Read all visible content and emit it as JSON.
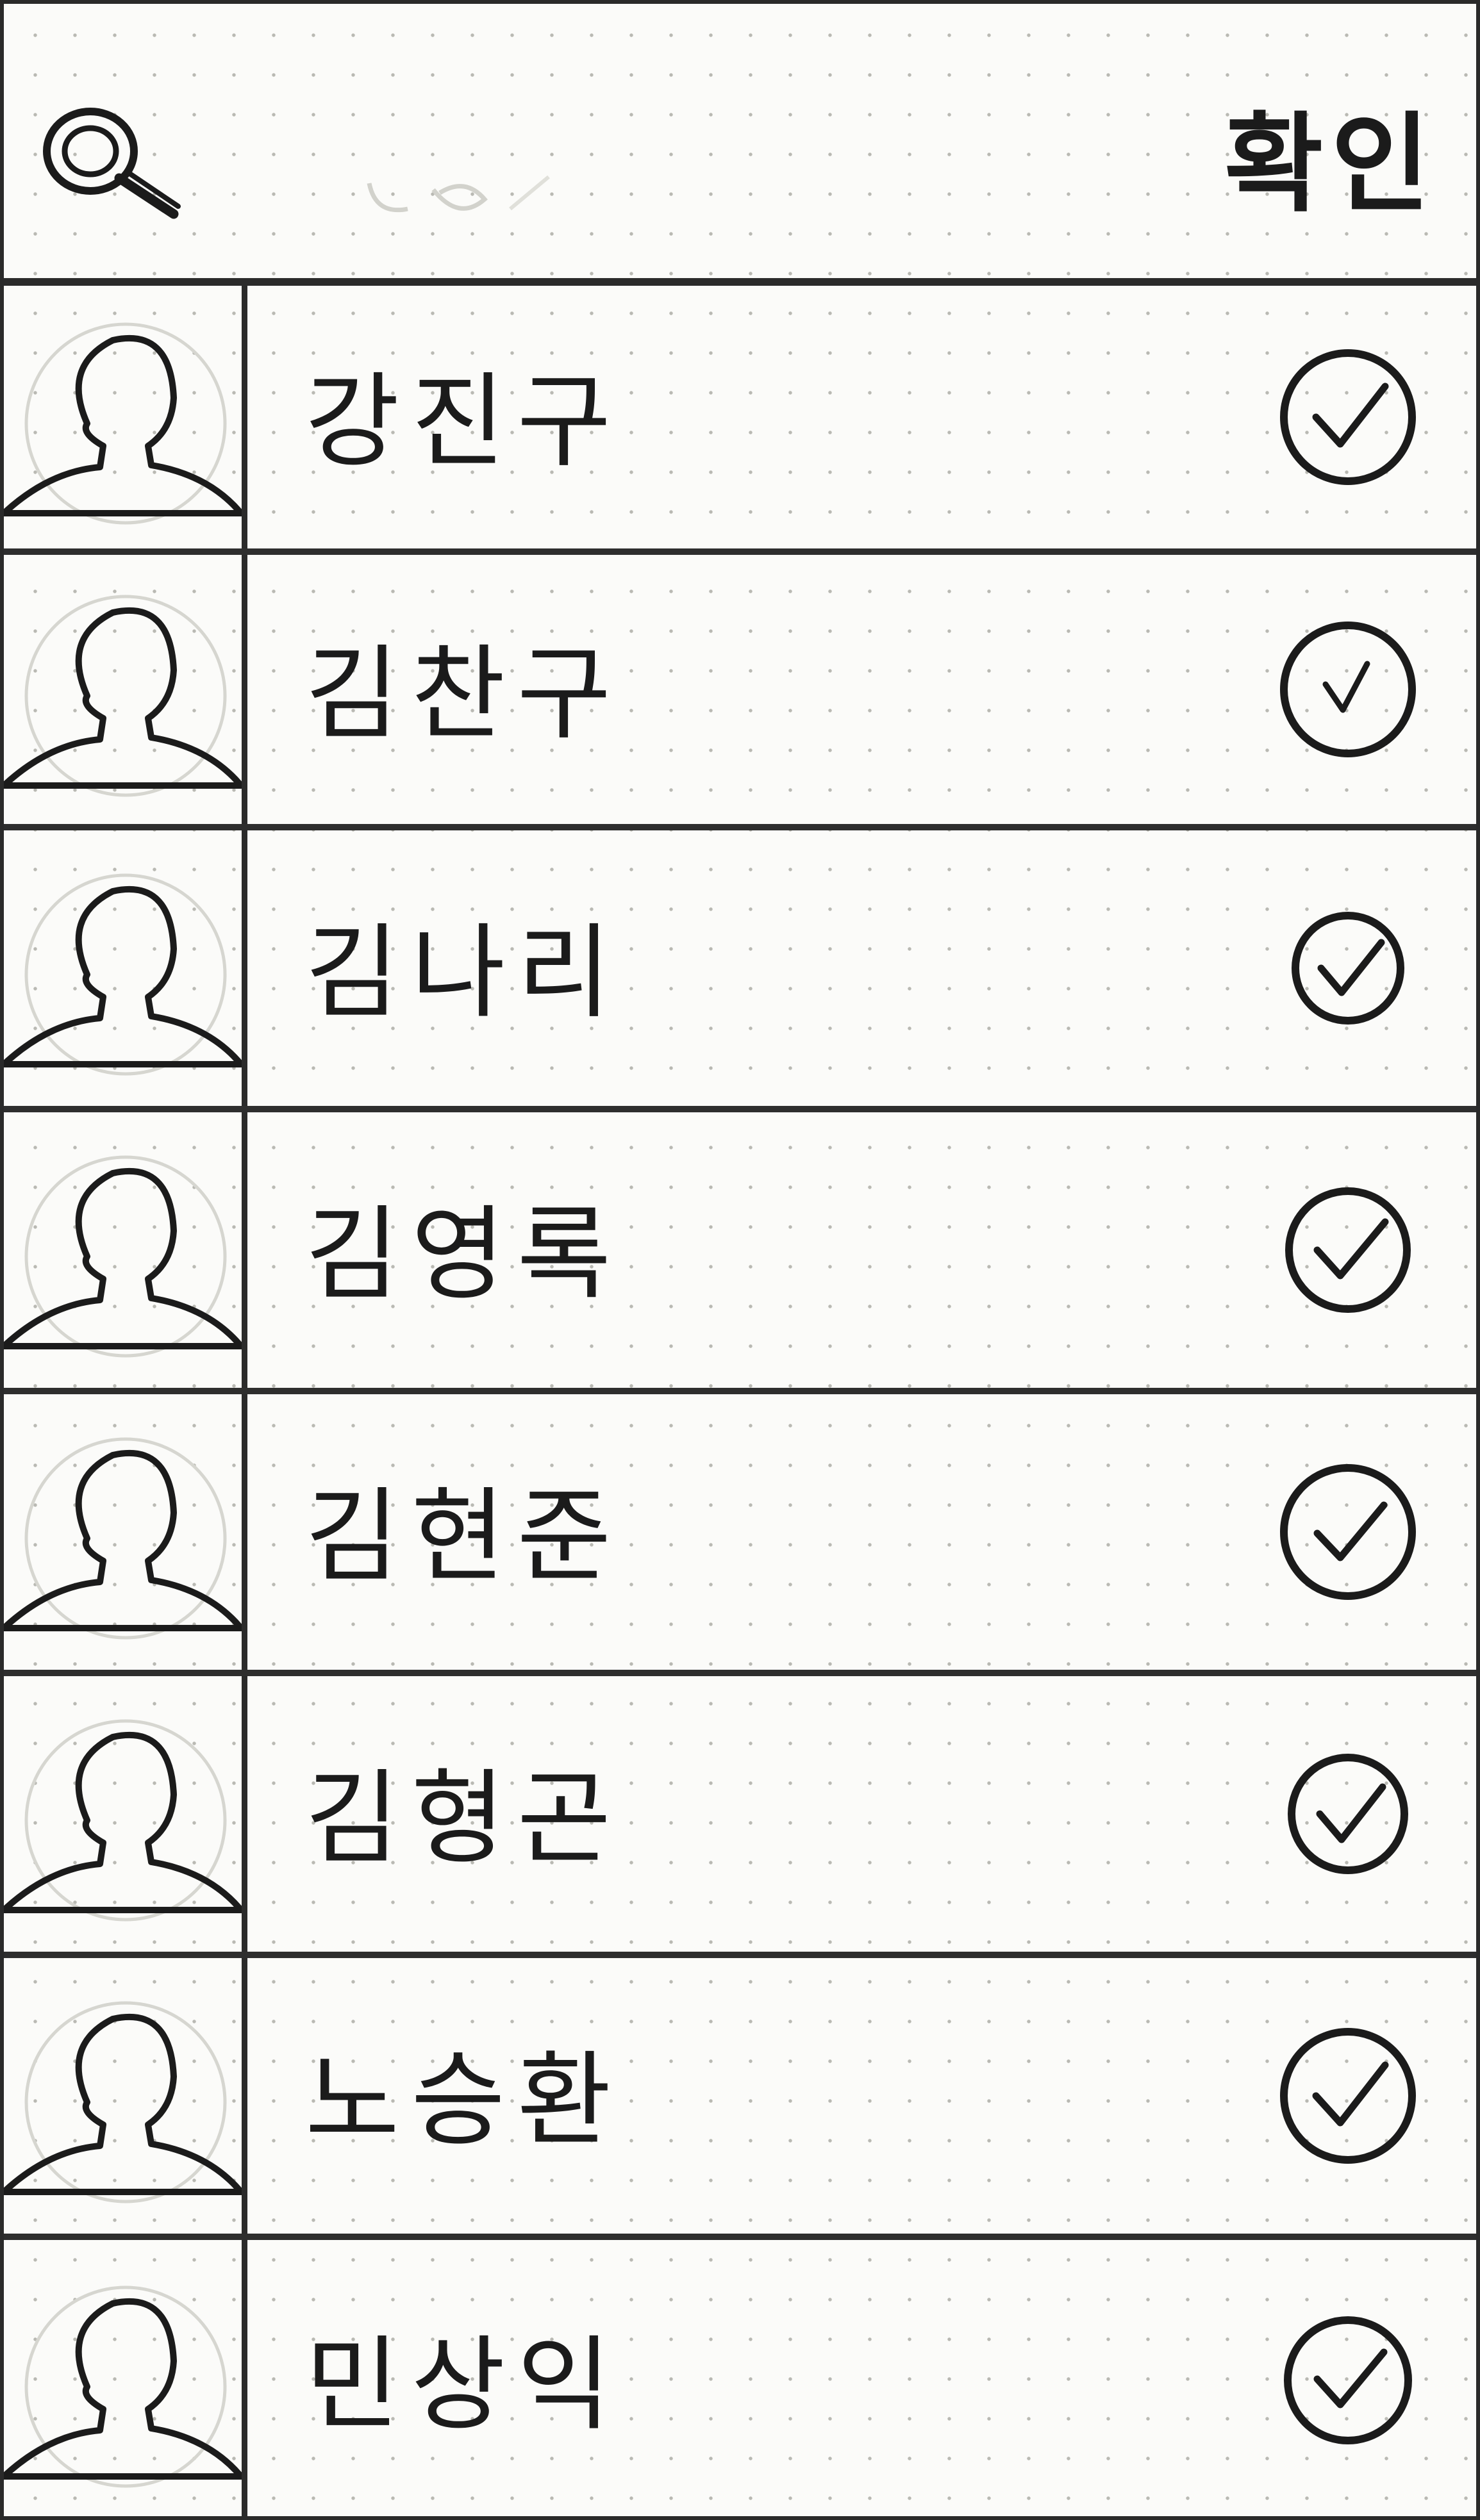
{
  "header": {
    "search_icon": "search-icon",
    "confirm_label": "확인"
  },
  "contacts": [
    {
      "name": "강진구",
      "selected": true
    },
    {
      "name": "김찬구",
      "selected": true
    },
    {
      "name": "김나리",
      "selected": true
    },
    {
      "name": "김영록",
      "selected": true
    },
    {
      "name": "김현준",
      "selected": true
    },
    {
      "name": "김형곤",
      "selected": true
    },
    {
      "name": "노승환",
      "selected": true
    },
    {
      "name": "민상익",
      "selected": true
    }
  ],
  "colors": {
    "ink": "#1b1b1b",
    "paper": "#fbfbf9",
    "dot": "#b9b9b3"
  }
}
